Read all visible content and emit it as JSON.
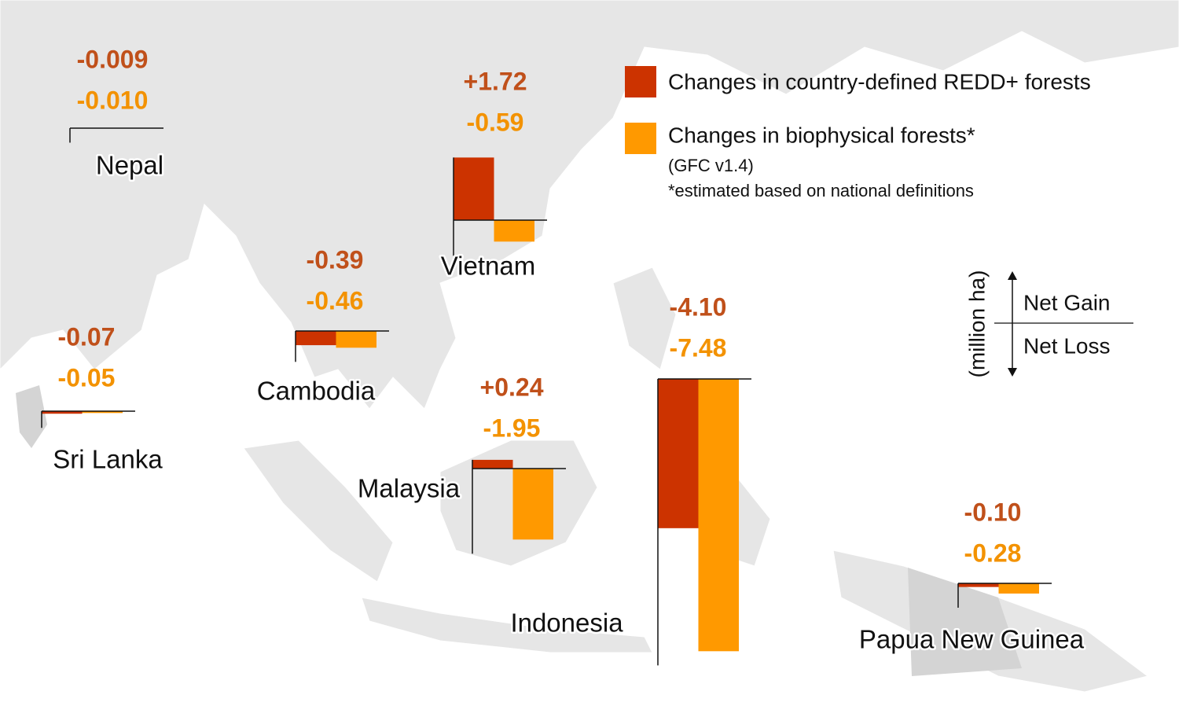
{
  "legend": [
    {
      "label": "Changes in country-defined REDD+ forests",
      "color": "#cc3300"
    },
    {
      "label": "Changes in biophysical forests*",
      "color": "#ff9900"
    }
  ],
  "legend_note_1": "(GFC v1.4)",
  "legend_note_2": "*estimated based on national definitions",
  "units": "(million ha)",
  "net_gain": "Net Gain",
  "net_loss": "Net Loss",
  "label_colors": [
    "#c0501a",
    "#f39200"
  ],
  "countries": [
    {
      "name": "Nepal",
      "values": [
        -0.009,
        -0.01
      ],
      "value_labels": [
        "-0.009",
        "-0.010"
      ]
    },
    {
      "name": "Vietnam",
      "values": [
        1.72,
        -0.59
      ],
      "value_labels": [
        "+1.72",
        "-0.59"
      ]
    },
    {
      "name": "Cambodia",
      "values": [
        -0.39,
        -0.46
      ],
      "value_labels": [
        "-0.39",
        "-0.46"
      ]
    },
    {
      "name": "Sri Lanka",
      "values": [
        -0.07,
        -0.05
      ],
      "value_labels": [
        "-0.07",
        "-0.05"
      ]
    },
    {
      "name": "Malaysia",
      "values": [
        0.24,
        -1.95
      ],
      "value_labels": [
        "+0.24",
        "-1.95"
      ]
    },
    {
      "name": "Indonesia",
      "values": [
        -4.1,
        -7.48
      ],
      "value_labels": [
        "-4.10",
        "-7.48"
      ]
    },
    {
      "name": "Papua New Guinea",
      "values": [
        -0.1,
        -0.28
      ],
      "value_labels": [
        "-0.10",
        "-0.28"
      ]
    }
  ]
}
